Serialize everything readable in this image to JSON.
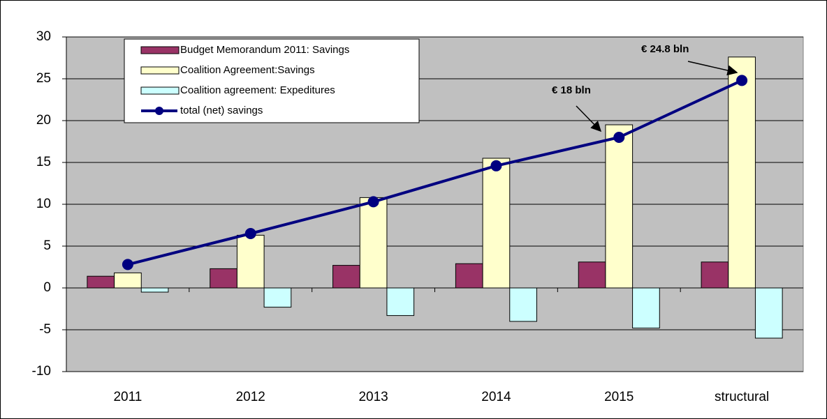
{
  "chart_data": {
    "type": "bar",
    "categories": [
      "2011",
      "2012",
      "2013",
      "2014",
      "2015",
      "structural"
    ],
    "series": [
      {
        "name": "Budget Memorandum 2011: Savings",
        "color": "#993366",
        "values": [
          1.4,
          2.3,
          2.7,
          2.9,
          3.1,
          3.1
        ]
      },
      {
        "name": "Coalition Agreement:Savings",
        "color": "#ffffcc",
        "values": [
          1.8,
          6.3,
          10.8,
          15.5,
          19.5,
          27.6
        ]
      },
      {
        "name": "Coalition agreement: Expeditures",
        "color": "#ccffff",
        "values": [
          -0.5,
          -2.3,
          -3.3,
          -4,
          -4.8,
          -6
        ]
      },
      {
        "name": "total (net) savings",
        "color": "#000080",
        "type": "line",
        "values": [
          2.8,
          6.5,
          10.3,
          14.6,
          18,
          24.8
        ]
      }
    ],
    "annotations": [
      "€ 18 bln",
      "€ 24.8 bln"
    ],
    "ylim": [
      -10,
      30
    ],
    "yticks": [
      -10,
      -5,
      0,
      5,
      10,
      15,
      20,
      25,
      30
    ],
    "grid": true,
    "legend": "upper left",
    "plot_background": "#c0c0c0"
  }
}
